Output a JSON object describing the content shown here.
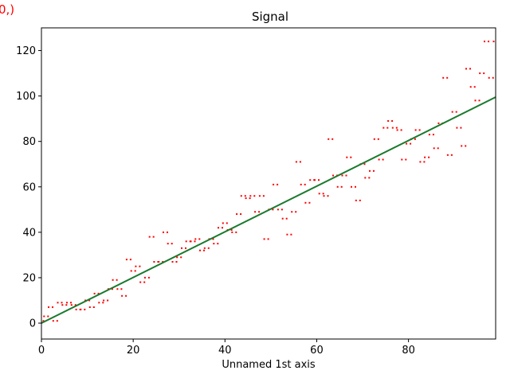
{
  "corner_text": "0,)",
  "chart_data": {
    "type": "scatter",
    "title": "Signal",
    "xlabel": "Unnamed 1st axis",
    "ylabel": "",
    "xlim": [
      0,
      99
    ],
    "ylim": [
      -7,
      130
    ],
    "xticks": [
      0,
      20,
      40,
      60,
      80
    ],
    "yticks": [
      0,
      20,
      40,
      60,
      80,
      100,
      120
    ],
    "grid": false,
    "colors": {
      "points": "#ff0000",
      "fit": "#1a7a2e",
      "corner": "#ff0000"
    },
    "series": [
      {
        "kind": "points",
        "x": [
          0,
          1,
          2,
          3,
          4,
          5,
          6,
          7,
          8,
          9,
          10,
          11,
          12,
          13,
          14,
          15,
          16,
          17,
          18,
          19,
          20,
          21,
          22,
          23,
          24,
          25,
          26,
          27,
          28,
          29,
          30,
          31,
          32,
          33,
          34,
          35,
          36,
          37,
          38,
          39,
          40,
          41,
          42,
          43,
          44,
          45,
          46,
          47,
          48,
          49,
          50,
          51,
          52,
          53,
          54,
          55,
          56,
          57,
          58,
          59,
          60,
          61,
          62,
          63,
          64,
          65,
          66,
          67,
          68,
          69,
          70,
          71,
          72,
          73,
          74,
          75,
          76,
          77,
          78,
          79,
          80,
          81,
          82,
          83,
          84,
          85,
          86,
          87,
          88,
          89,
          90,
          91,
          92,
          93,
          94,
          95,
          96,
          97,
          98,
          99
        ],
        "y": [
          1,
          3,
          7,
          1,
          9,
          8,
          9,
          8,
          6,
          6,
          10,
          7,
          13,
          9,
          10,
          15,
          19,
          15,
          12,
          28,
          23,
          25,
          18,
          20,
          38,
          27,
          27,
          40,
          35,
          27,
          29,
          33,
          36,
          36,
          37,
          32,
          33,
          37,
          35,
          42,
          44,
          41,
          40,
          48,
          56,
          55,
          56,
          49,
          56,
          37,
          50,
          61,
          50,
          46,
          39,
          49,
          71,
          61,
          53,
          63,
          63,
          57,
          56,
          81,
          65,
          60,
          65,
          73,
          60,
          54,
          70,
          64,
          67,
          81,
          72,
          86,
          89,
          86,
          85,
          72,
          79,
          81,
          85,
          71,
          73,
          83,
          77,
          88,
          108,
          74,
          93,
          86,
          78,
          112,
          104,
          98,
          110,
          124,
          108,
          124
        ]
      },
      {
        "kind": "fit",
        "x": [
          0,
          99
        ],
        "y": [
          0,
          99.5
        ]
      }
    ]
  }
}
